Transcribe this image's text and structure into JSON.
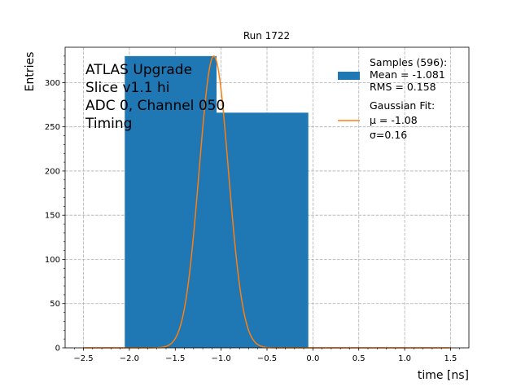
{
  "chart_data": {
    "type": "bar",
    "title": "Run 1722",
    "xlabel": "time [ns]",
    "ylabel": "Entries",
    "xlim": [
      -2.7,
      1.7
    ],
    "ylim": [
      0,
      340
    ],
    "grid": true,
    "xticks": [
      -2.5,
      -2.0,
      -1.5,
      -1.0,
      -0.5,
      0.0,
      0.5,
      1.0,
      1.5
    ],
    "xtick_labels": [
      "−2.5",
      "−2.0",
      "−1.5",
      "−1.0",
      "−0.5",
      "0.0",
      "0.5",
      "1.0",
      "1.5"
    ],
    "yticks": [
      0,
      50,
      100,
      150,
      200,
      250,
      300
    ],
    "ytick_labels": [
      "0",
      "50",
      "100",
      "150",
      "200",
      "250",
      "300"
    ],
    "histogram": {
      "name": "Samples",
      "color": "#1f77b4",
      "bins": [
        {
          "x0": -2.05,
          "x1": -1.05,
          "value": 330
        },
        {
          "x0": -1.05,
          "x1": -0.05,
          "value": 266
        }
      ]
    },
    "fit": {
      "name": "Gaussian Fit",
      "color": "#ff7f0e",
      "mu": -1.08,
      "sigma": 0.16,
      "amplitude": 330,
      "x_range": [
        -2.5,
        1.5
      ]
    },
    "annotation_lines": [
      "ATLAS Upgrade",
      "Slice v1.1 hi",
      "ADC 0, Channel 050",
      "Timing"
    ],
    "legend": {
      "placement": "top-right",
      "entries": [
        {
          "kind": "patch",
          "color": "#1f77b4",
          "lines": [
            "Samples (596):",
            " Mean = -1.081",
            " RMS = 0.158"
          ]
        },
        {
          "kind": "line",
          "color": "#ff7f0e",
          "lines": [
            "Gaussian Fit:",
            " μ = -1.08",
            " σ=0.16"
          ]
        }
      ]
    }
  }
}
